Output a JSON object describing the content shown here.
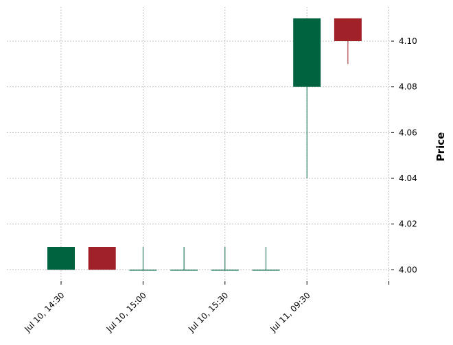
{
  "chart_data": {
    "type": "candlestick",
    "title": "",
    "xlabel": "",
    "ylabel": "Price",
    "ylim": [
      3.995,
      4.115
    ],
    "y_ticks": [
      "4.00",
      "4.02",
      "4.04",
      "4.06",
      "4.08",
      "4.10"
    ],
    "x_tick_labels": [
      {
        "index": 0,
        "label": "Jul 10, 14:30"
      },
      {
        "index": 2,
        "label": "Jul 10, 15:00"
      },
      {
        "index": 4,
        "label": "Jul 10, 15:30"
      },
      {
        "index": 6,
        "label": "Jul 11, 09:30"
      },
      {
        "index": 8,
        "label": ""
      }
    ],
    "grid": true,
    "colors": {
      "up": "#006340",
      "down": "#A02128",
      "grid": "#b0b0b0"
    },
    "candles": [
      {
        "open": 4.0,
        "high": 4.01,
        "low": 4.0,
        "close": 4.01
      },
      {
        "open": 4.01,
        "high": 4.01,
        "low": 4.0,
        "close": 4.0
      },
      {
        "open": 4.0,
        "high": 4.01,
        "low": 4.0,
        "close": 4.0
      },
      {
        "open": 4.0,
        "high": 4.01,
        "low": 4.0,
        "close": 4.0
      },
      {
        "open": 4.0,
        "high": 4.01,
        "low": 4.0,
        "close": 4.0
      },
      {
        "open": 4.0,
        "high": 4.01,
        "low": 4.0,
        "close": 4.0
      },
      {
        "open": 4.08,
        "high": 4.11,
        "low": 4.04,
        "close": 4.11
      },
      {
        "open": 4.11,
        "high": 4.11,
        "low": 4.09,
        "close": 4.1
      }
    ]
  }
}
